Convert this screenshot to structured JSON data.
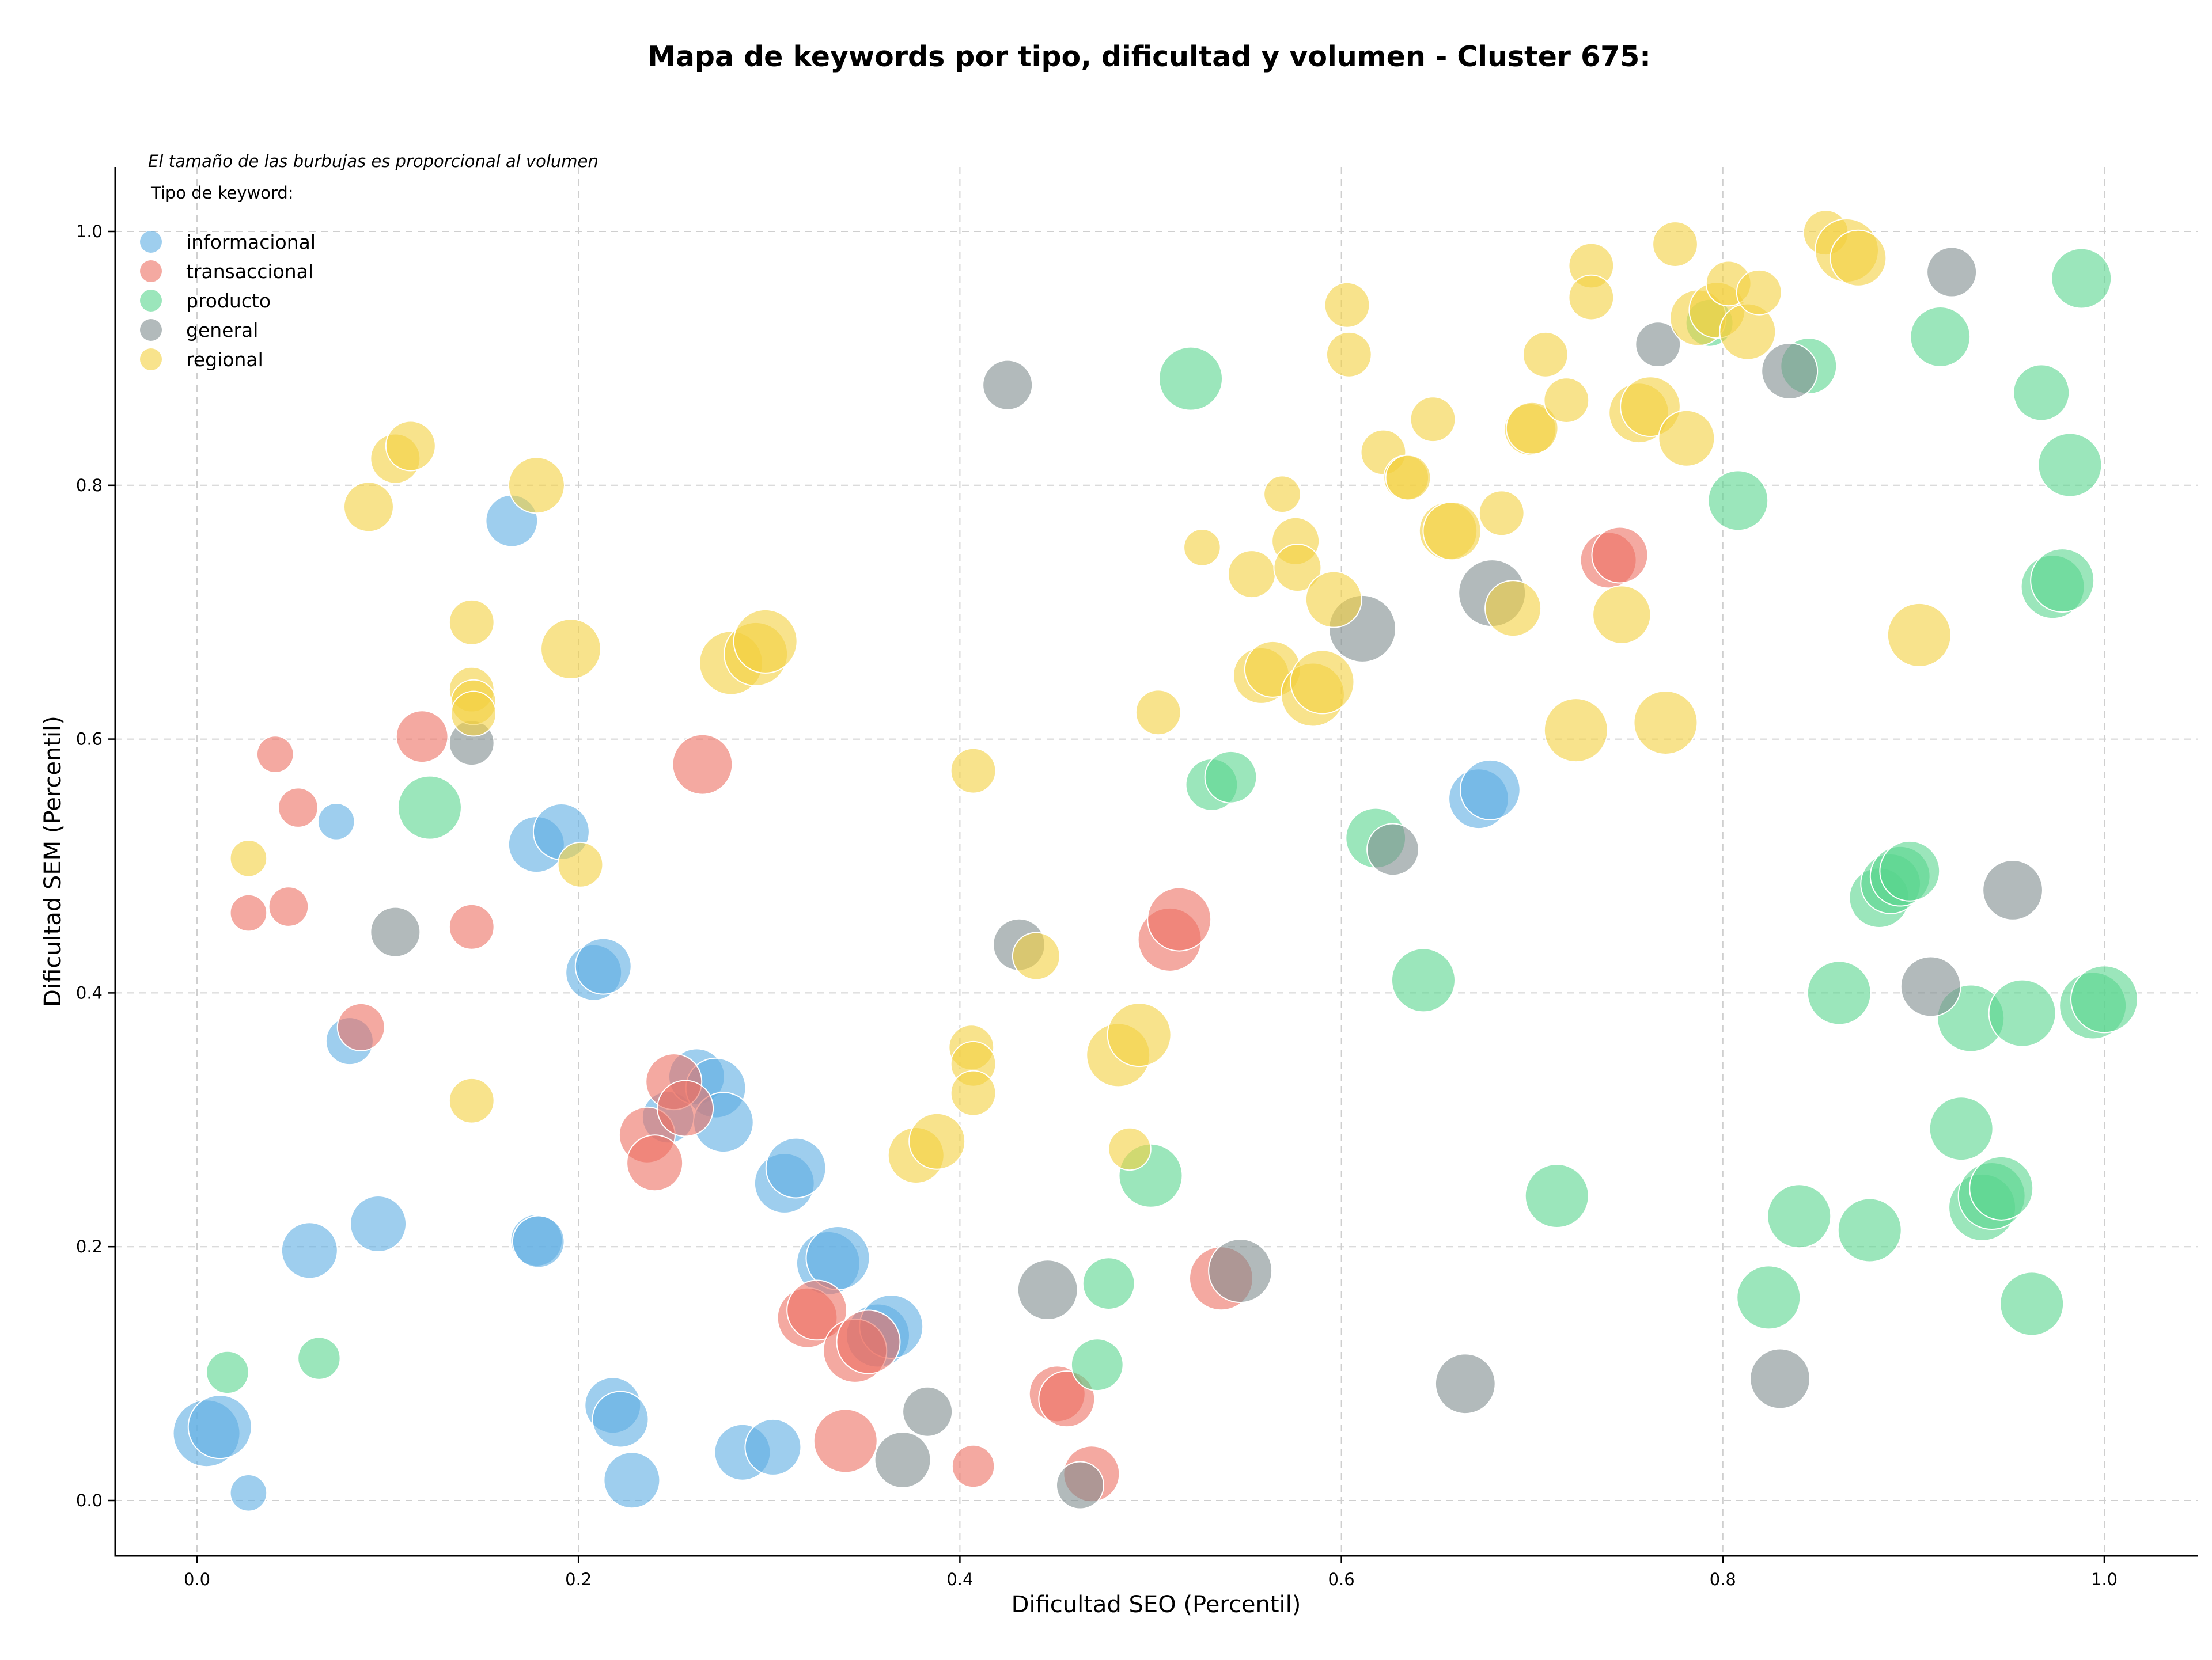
{
  "chart_data": {
    "type": "scatter",
    "title": "Mapa de keywords por tipo, dificultad y volumen - Cluster 675:",
    "xlabel": "Dificultad SEO (Percentil)",
    "ylabel": "Dificultad SEM (Percentil)",
    "xlim": [
      -0.045,
      1.05
    ],
    "ylim": [
      -0.045,
      1.05
    ],
    "xticks": [
      "0.0",
      "0.2",
      "0.4",
      "0.6",
      "0.8",
      "1.0"
    ],
    "yticks": [
      "0.0",
      "0.2",
      "0.4",
      "0.6",
      "0.8",
      "1.0"
    ],
    "grid": true,
    "annotation": "El tamaño de las burbujas es proporcional al volumen",
    "legend": {
      "title": "Tipo de keyword:",
      "placement": "top-left"
    },
    "series": [
      {
        "name": "informacional",
        "color": "#5dade2",
        "points": [
          [
            0.005,
            0.053,
            1.0
          ],
          [
            0.012,
            0.058,
            0.9
          ],
          [
            0.027,
            0.006,
            0.3
          ],
          [
            0.059,
            0.197,
            0.7
          ],
          [
            0.08,
            0.362,
            0.5
          ],
          [
            0.095,
            0.218,
            0.7
          ],
          [
            0.073,
            0.535,
            0.3
          ],
          [
            0.165,
            0.772,
            0.6
          ],
          [
            0.178,
            0.517,
            0.7
          ],
          [
            0.191,
            0.527,
            0.7
          ],
          [
            0.178,
            0.205,
            0.6
          ],
          [
            0.179,
            0.204,
            0.6
          ],
          [
            0.208,
            0.416,
            0.7
          ],
          [
            0.213,
            0.421,
            0.7
          ],
          [
            0.218,
            0.075,
            0.7
          ],
          [
            0.222,
            0.064,
            0.7
          ],
          [
            0.228,
            0.016,
            0.7
          ],
          [
            0.247,
            0.302,
            0.6
          ],
          [
            0.262,
            0.334,
            0.7
          ],
          [
            0.272,
            0.325,
            0.8
          ],
          [
            0.276,
            0.298,
            0.8
          ],
          [
            0.286,
            0.038,
            0.7
          ],
          [
            0.302,
            0.042,
            0.7
          ],
          [
            0.308,
            0.25,
            0.8
          ],
          [
            0.314,
            0.262,
            0.8
          ],
          [
            0.331,
            0.187,
            0.9
          ],
          [
            0.336,
            0.191,
            0.9
          ],
          [
            0.357,
            0.13,
            0.9
          ],
          [
            0.364,
            0.137,
            0.9
          ],
          [
            0.672,
            0.553,
            0.8
          ],
          [
            0.678,
            0.56,
            0.8
          ]
        ]
      },
      {
        "name": "transaccional",
        "color": "#ec7063",
        "points": [
          [
            0.027,
            0.463,
            0.3
          ],
          [
            0.048,
            0.468,
            0.35
          ],
          [
            0.053,
            0.546,
            0.35
          ],
          [
            0.041,
            0.588,
            0.3
          ],
          [
            0.086,
            0.373,
            0.5
          ],
          [
            0.118,
            0.602,
            0.6
          ],
          [
            0.144,
            0.452,
            0.45
          ],
          [
            0.236,
            0.288,
            0.7
          ],
          [
            0.24,
            0.266,
            0.7
          ],
          [
            0.25,
            0.33,
            0.7
          ],
          [
            0.256,
            0.309,
            0.7
          ],
          [
            0.265,
            0.58,
            0.8
          ],
          [
            0.32,
            0.144,
            0.8
          ],
          [
            0.325,
            0.15,
            0.8
          ],
          [
            0.34,
            0.047,
            0.9
          ],
          [
            0.345,
            0.118,
            0.9
          ],
          [
            0.352,
            0.125,
            0.9
          ],
          [
            0.407,
            0.027,
            0.4
          ],
          [
            0.451,
            0.084,
            0.7
          ],
          [
            0.456,
            0.08,
            0.7
          ],
          [
            0.469,
            0.021,
            0.7
          ],
          [
            0.51,
            0.442,
            0.9
          ],
          [
            0.515,
            0.458,
            0.9
          ],
          [
            0.537,
            0.175,
            0.9
          ],
          [
            0.74,
            0.741,
            0.7
          ],
          [
            0.746,
            0.745,
            0.7
          ]
        ]
      },
      {
        "name": "producto",
        "color": "#58d68d",
        "points": [
          [
            0.016,
            0.101,
            0.4
          ],
          [
            0.064,
            0.112,
            0.4
          ],
          [
            0.122,
            0.546,
            0.9
          ],
          [
            0.472,
            0.107,
            0.6
          ],
          [
            0.478,
            0.171,
            0.6
          ],
          [
            0.5,
            0.256,
            0.9
          ],
          [
            0.521,
            0.884,
            0.9
          ],
          [
            0.532,
            0.564,
            0.6
          ],
          [
            0.542,
            0.57,
            0.6
          ],
          [
            0.618,
            0.522,
            0.8
          ],
          [
            0.643,
            0.41,
            0.9
          ],
          [
            0.713,
            0.24,
            0.9
          ],
          [
            0.793,
            0.928,
            0.5
          ],
          [
            0.808,
            0.788,
            0.8
          ],
          [
            0.824,
            0.16,
            0.9
          ],
          [
            0.84,
            0.224,
            0.9
          ],
          [
            0.845,
            0.894,
            0.7
          ],
          [
            0.861,
            0.4,
            0.9
          ],
          [
            0.877,
            0.213,
            0.9
          ],
          [
            0.882,
            0.475,
            0.8
          ],
          [
            0.888,
            0.486,
            0.8
          ],
          [
            0.893,
            0.492,
            0.8
          ],
          [
            0.898,
            0.496,
            0.8
          ],
          [
            0.925,
            0.293,
            0.9
          ],
          [
            0.914,
            0.917,
            0.8
          ],
          [
            0.93,
            0.38,
            1.0
          ],
          [
            0.936,
            0.231,
            1.0
          ],
          [
            0.941,
            0.24,
            1.0
          ],
          [
            0.946,
            0.246,
            0.9
          ],
          [
            0.957,
            0.384,
            1.0
          ],
          [
            0.962,
            0.155,
            0.9
          ],
          [
            0.967,
            0.873,
            0.7
          ],
          [
            0.973,
            0.72,
            0.9
          ],
          [
            0.978,
            0.725,
            0.9
          ],
          [
            0.982,
            0.816,
            0.9
          ],
          [
            0.988,
            0.963,
            0.8
          ],
          [
            0.994,
            0.39,
            1.0
          ],
          [
            1.0,
            0.395,
            1.0
          ]
        ]
      },
      {
        "name": "general",
        "color": "#7f8c8d",
        "points": [
          [
            0.144,
            0.597,
            0.45
          ],
          [
            0.104,
            0.448,
            0.55
          ],
          [
            0.37,
            0.032,
            0.7
          ],
          [
            0.383,
            0.07,
            0.55
          ],
          [
            0.425,
            0.879,
            0.55
          ],
          [
            0.431,
            0.438,
            0.6
          ],
          [
            0.446,
            0.166,
            0.8
          ],
          [
            0.463,
            0.012,
            0.5
          ],
          [
            0.547,
            0.181,
            0.9
          ],
          [
            0.611,
            0.687,
            1.0
          ],
          [
            0.627,
            0.513,
            0.6
          ],
          [
            0.665,
            0.092,
            0.8
          ],
          [
            0.679,
            0.715,
            1.0
          ],
          [
            0.766,
            0.911,
            0.45
          ],
          [
            0.83,
            0.096,
            0.8
          ],
          [
            0.835,
            0.89,
            0.7
          ],
          [
            0.909,
            0.405,
            0.8
          ],
          [
            0.92,
            0.968,
            0.55
          ],
          [
            0.952,
            0.481,
            0.8
          ]
        ]
      },
      {
        "name": "regional",
        "color": "#f4d03f",
        "points": [
          [
            0.027,
            0.506,
            0.3
          ],
          [
            0.09,
            0.783,
            0.55
          ],
          [
            0.104,
            0.821,
            0.55
          ],
          [
            0.112,
            0.831,
            0.55
          ],
          [
            0.144,
            0.315,
            0.45
          ],
          [
            0.144,
            0.692,
            0.45
          ],
          [
            0.144,
            0.639,
            0.45
          ],
          [
            0.145,
            0.629,
            0.45
          ],
          [
            0.145,
            0.62,
            0.45
          ],
          [
            0.178,
            0.8,
            0.7
          ],
          [
            0.196,
            0.671,
            0.8
          ],
          [
            0.201,
            0.501,
            0.45
          ],
          [
            0.28,
            0.66,
            0.9
          ],
          [
            0.293,
            0.667,
            0.9
          ],
          [
            0.298,
            0.677,
            0.9
          ],
          [
            0.377,
            0.272,
            0.7
          ],
          [
            0.388,
            0.283,
            0.7
          ],
          [
            0.407,
            0.575,
            0.45
          ],
          [
            0.406,
            0.357,
            0.45
          ],
          [
            0.407,
            0.344,
            0.45
          ],
          [
            0.407,
            0.321,
            0.45
          ],
          [
            0.44,
            0.429,
            0.5
          ],
          [
            0.483,
            0.351,
            0.9
          ],
          [
            0.489,
            0.277,
            0.4
          ],
          [
            0.494,
            0.367,
            0.9
          ],
          [
            0.504,
            0.621,
            0.45
          ],
          [
            0.527,
            0.751,
            0.3
          ],
          [
            0.553,
            0.73,
            0.5
          ],
          [
            0.558,
            0.65,
            0.7
          ],
          [
            0.564,
            0.655,
            0.7
          ],
          [
            0.569,
            0.793,
            0.3
          ],
          [
            0.576,
            0.756,
            0.5
          ],
          [
            0.577,
            0.735,
            0.5
          ],
          [
            0.585,
            0.635,
            0.9
          ],
          [
            0.59,
            0.645,
            0.9
          ],
          [
            0.596,
            0.71,
            0.7
          ],
          [
            0.603,
            0.942,
            0.45
          ],
          [
            0.604,
            0.903,
            0.45
          ],
          [
            0.622,
            0.826,
            0.45
          ],
          [
            0.634,
            0.806,
            0.45
          ],
          [
            0.635,
            0.806,
            0.45
          ],
          [
            0.648,
            0.852,
            0.45
          ],
          [
            0.656,
            0.764,
            0.75
          ],
          [
            0.658,
            0.764,
            0.75
          ],
          [
            0.684,
            0.778,
            0.45
          ],
          [
            0.69,
            0.703,
            0.7
          ],
          [
            0.699,
            0.844,
            0.6
          ],
          [
            0.7,
            0.845,
            0.6
          ],
          [
            0.707,
            0.903,
            0.45
          ],
          [
            0.718,
            0.867,
            0.45
          ],
          [
            0.723,
            0.607,
            0.9
          ],
          [
            0.731,
            0.973,
            0.45
          ],
          [
            0.731,
            0.948,
            0.45
          ],
          [
            0.747,
            0.698,
            0.75
          ],
          [
            0.756,
            0.857,
            0.8
          ],
          [
            0.762,
            0.862,
            0.8
          ],
          [
            0.77,
            0.613,
            0.9
          ],
          [
            0.775,
            0.99,
            0.45
          ],
          [
            0.781,
            0.837,
            0.7
          ],
          [
            0.787,
            0.932,
            0.7
          ],
          [
            0.797,
            0.938,
            0.7
          ],
          [
            0.803,
            0.959,
            0.45
          ],
          [
            0.813,
            0.921,
            0.7
          ],
          [
            0.819,
            0.952,
            0.45
          ],
          [
            0.854,
            0.999,
            0.45
          ],
          [
            0.865,
            0.985,
            0.9
          ],
          [
            0.871,
            0.979,
            0.7
          ],
          [
            0.903,
            0.682,
            0.9
          ]
        ]
      }
    ]
  }
}
